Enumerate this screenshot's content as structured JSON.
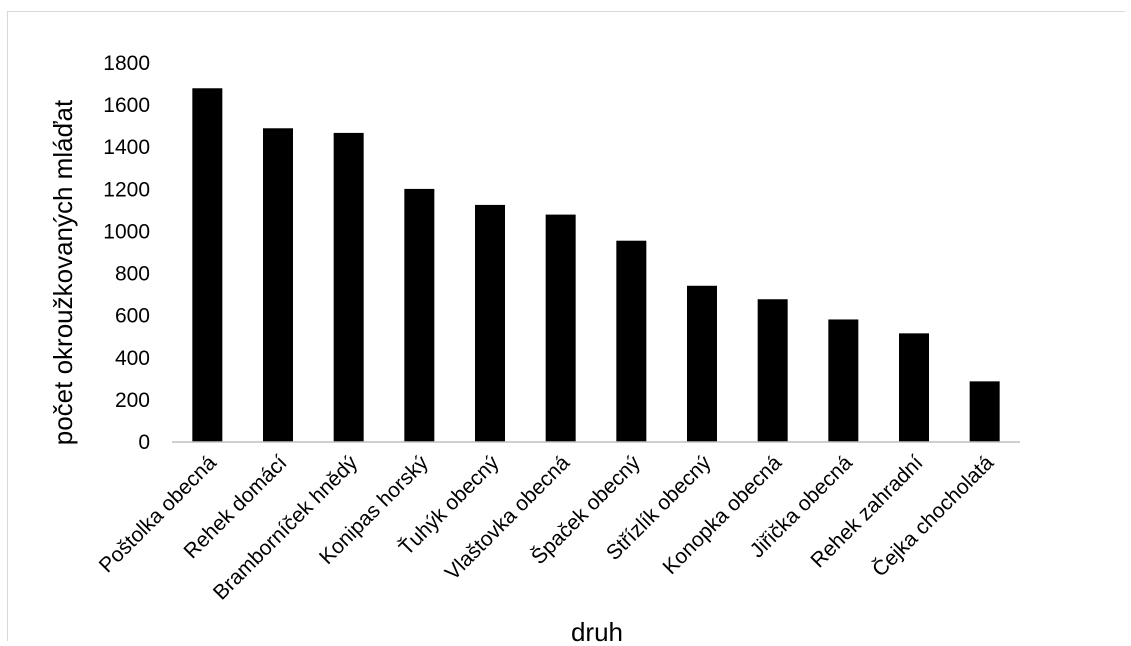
{
  "chart_data": {
    "type": "bar",
    "title": "",
    "xlabel": "druh",
    "ylabel": "počet okroužkovaných mláďat",
    "ylim": [
      0,
      1800
    ],
    "yticks": [
      0,
      200,
      400,
      600,
      800,
      1000,
      1200,
      1400,
      1600,
      1800
    ],
    "grid": false,
    "bar_color": "#000000",
    "categories": [
      "Poštolka obecná",
      "Rehek domácí",
      "Bramborníček hnědý",
      "Konipas horský",
      "Ťuhýk obecný",
      "Vlaštovka obecná",
      "Špaček obecný",
      "Střízlík obecný",
      "Konopka obecná",
      "Jiřička obecná",
      "Rehek zahradní",
      "Čejka chocholatá"
    ],
    "values": [
      1680,
      1490,
      1468,
      1202,
      1126,
      1080,
      956,
      742,
      678,
      582,
      516,
      288
    ]
  }
}
